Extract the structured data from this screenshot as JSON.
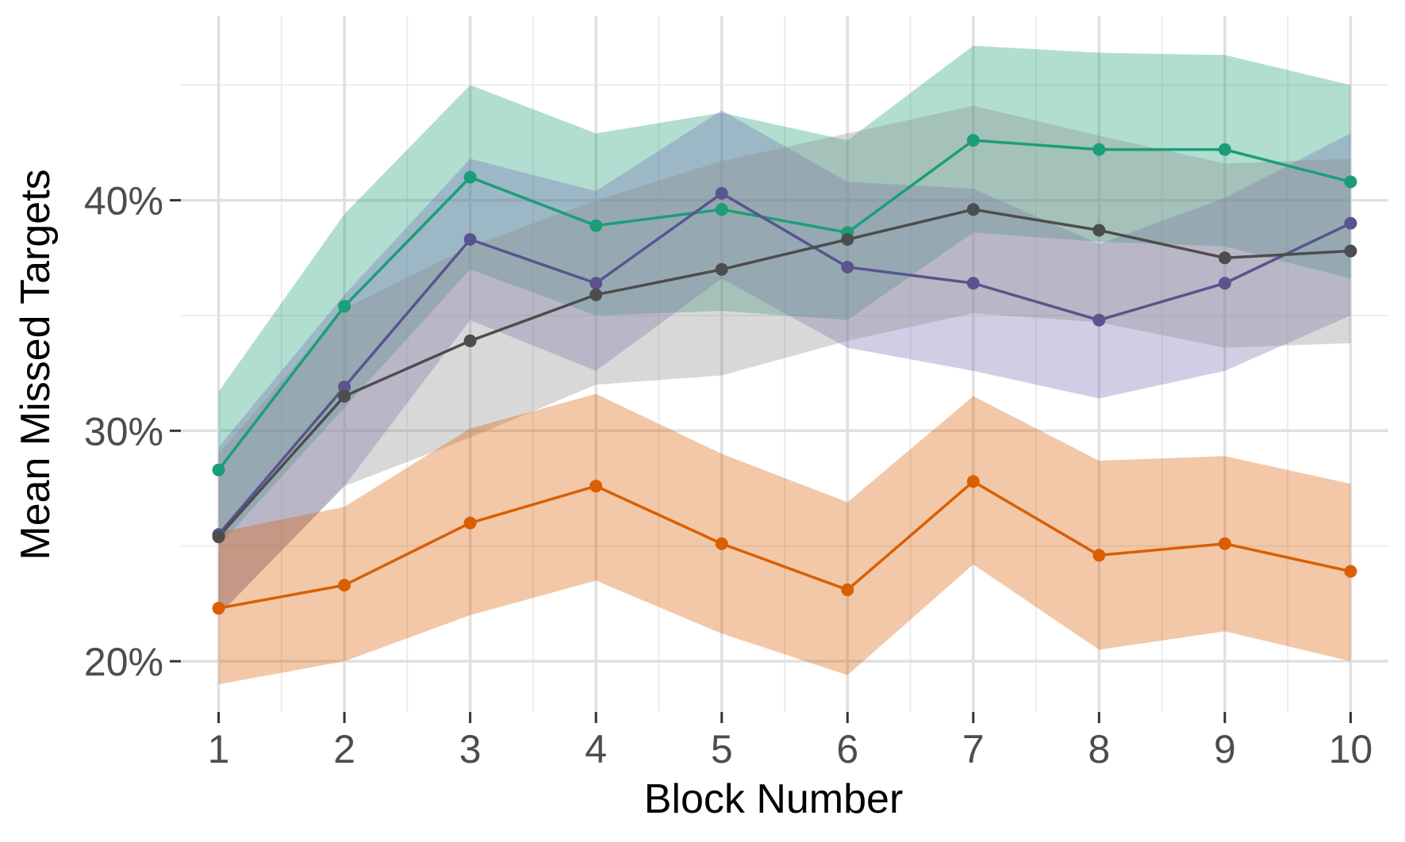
{
  "chart_data": {
    "type": "line",
    "title": "",
    "xlabel": "Block Number",
    "ylabel": "Mean Missed Targets",
    "x": [
      1,
      2,
      3,
      4,
      5,
      6,
      7,
      8,
      9,
      10
    ],
    "xlim": [
      0.7,
      10.3
    ],
    "ylim": [
      17.8,
      48.0
    ],
    "x_ticks": [
      1,
      2,
      3,
      4,
      5,
      6,
      7,
      8,
      9,
      10
    ],
    "x_tick_labels": [
      "1",
      "2",
      "3",
      "4",
      "5",
      "6",
      "7",
      "8",
      "9",
      "10"
    ],
    "y_ticks": [
      20,
      30,
      40
    ],
    "y_tick_labels": [
      "20%",
      "30%",
      "40%"
    ],
    "y_minor_ticks": [
      25,
      35,
      45
    ],
    "grid": true,
    "legend": "none",
    "series": [
      {
        "color": "#1b9e77",
        "band_color": "#1b9e77",
        "values": [
          28.3,
          35.4,
          41.0,
          38.9,
          39.6,
          38.6,
          42.6,
          42.2,
          42.2,
          40.8
        ],
        "lower": [
          25.0,
          31.0,
          37.0,
          35.0,
          35.2,
          34.8,
          38.6,
          38.2,
          38.0,
          36.6
        ],
        "upper": [
          31.7,
          39.4,
          45.0,
          42.9,
          43.8,
          42.6,
          46.7,
          46.4,
          46.3,
          45.0
        ]
      },
      {
        "color": "#59548e",
        "band_color": "#7570b3",
        "values": [
          25.5,
          31.9,
          38.3,
          36.4,
          40.3,
          37.1,
          36.4,
          34.8,
          36.4,
          39.0
        ],
        "lower": [
          22.0,
          27.6,
          34.8,
          32.6,
          36.6,
          33.6,
          32.6,
          31.4,
          32.6,
          35.0
        ],
        "upper": [
          29.3,
          35.9,
          41.8,
          40.4,
          43.9,
          40.8,
          40.5,
          38.1,
          40.1,
          42.9
        ]
      },
      {
        "color": "#4d4d4d",
        "band_color": "#8c8c8c",
        "values": [
          25.4,
          31.5,
          33.9,
          35.9,
          37.0,
          38.3,
          39.6,
          38.7,
          37.5,
          37.8
        ],
        "lower": [
          22.0,
          27.6,
          29.7,
          32.0,
          32.4,
          33.9,
          35.1,
          34.7,
          33.6,
          33.8
        ],
        "upper": [
          29.0,
          35.3,
          38.0,
          40.0,
          41.7,
          42.9,
          44.1,
          42.8,
          41.6,
          41.8
        ]
      },
      {
        "color": "#d95f02",
        "band_color": "#d95f02",
        "values": [
          22.3,
          23.3,
          26.0,
          27.6,
          25.1,
          23.1,
          27.8,
          24.6,
          25.1,
          23.9
        ],
        "lower": [
          19.0,
          20.0,
          22.0,
          23.5,
          21.2,
          19.4,
          24.2,
          20.5,
          21.3,
          20.0
        ],
        "upper": [
          25.6,
          26.7,
          30.1,
          31.6,
          29.0,
          26.9,
          31.5,
          28.7,
          28.9,
          27.7
        ]
      }
    ]
  }
}
